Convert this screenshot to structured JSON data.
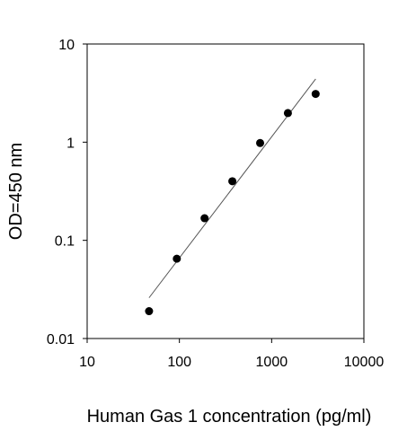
{
  "chart_data": {
    "type": "scatter",
    "xlabel": "Human Gas 1 concentration (pg/ml)",
    "ylabel": "OD=450 nm",
    "x_scale": "log",
    "y_scale": "log",
    "xlim": [
      10,
      10000
    ],
    "ylim": [
      0.01,
      10
    ],
    "x_ticks": [
      {
        "value": 10,
        "label": "10"
      },
      {
        "value": 100,
        "label": "100"
      },
      {
        "value": 1000,
        "label": "1000"
      },
      {
        "value": 10000,
        "label": "10000"
      }
    ],
    "y_ticks": [
      {
        "value": 0.01,
        "label": "0.01"
      },
      {
        "value": 0.1,
        "label": "0.1"
      },
      {
        "value": 1,
        "label": "1"
      },
      {
        "value": 10,
        "label": "10"
      }
    ],
    "grid": false,
    "points": [
      {
        "x": 46.9,
        "y": 0.019
      },
      {
        "x": 93.8,
        "y": 0.065
      },
      {
        "x": 187.5,
        "y": 0.168
      },
      {
        "x": 375,
        "y": 0.4
      },
      {
        "x": 750,
        "y": 0.98
      },
      {
        "x": 1500,
        "y": 1.98
      },
      {
        "x": 3000,
        "y": 3.1
      }
    ],
    "fit_line": {
      "x": [
        46.9,
        3000
      ],
      "y": [
        0.026,
        4.4
      ]
    }
  }
}
